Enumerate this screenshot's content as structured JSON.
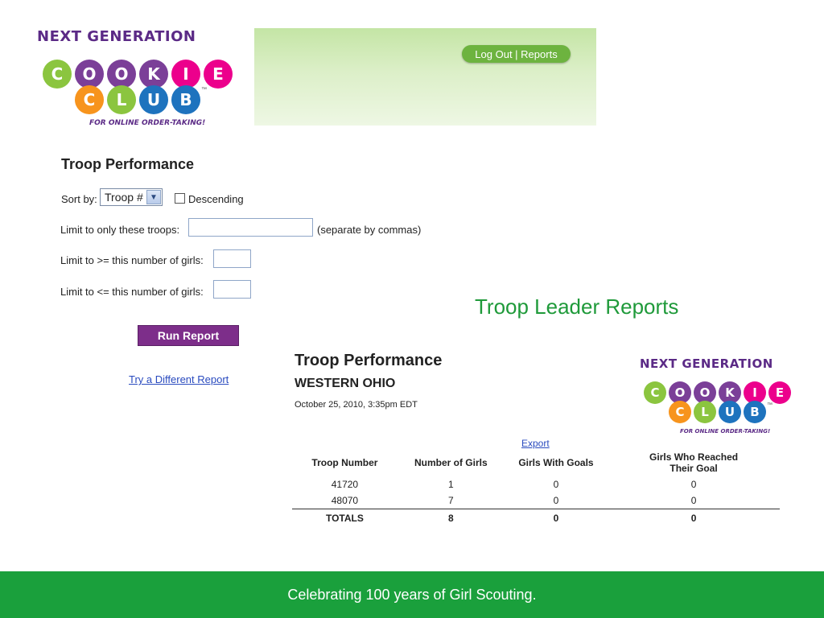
{
  "logo": {
    "title": "NEXT GENERATION",
    "word1_letters": [
      "C",
      "O",
      "O",
      "K",
      "I",
      "E"
    ],
    "word2_letters": [
      "C",
      "L",
      "U",
      "B"
    ],
    "tagline": "FOR ONLINE ORDER-TAKING!",
    "ball_colors": [
      "#8bc53f",
      "#7b3f98",
      "#7b3f98",
      "#7b3f98",
      "#ec008c",
      "#ec008c"
    ],
    "ball2_colors": [
      "#f7941d",
      "#8bc53f",
      "#1e73be",
      "#1e73be"
    ],
    "tm": "™"
  },
  "header": {
    "nav_logout": "Log Out",
    "nav_sep": " | ",
    "nav_reports": "Reports"
  },
  "form": {
    "title": "Troop Performance",
    "sort_label": "Sort by:",
    "sort_value": "Troop #",
    "descending_label": "Descending",
    "limit_troops_label": "Limit to only these troops:",
    "limit_troops_hint": "(separate by commas)",
    "min_girls_label": "Limit to >= this number of girls:",
    "max_girls_label": "Limit to <= this number of girls:",
    "run_button": "Run Report",
    "different_report_link": "Try a Different Report"
  },
  "section_title": "Troop Leader Reports",
  "report": {
    "title": "Troop Performance",
    "council": "WESTERN OHIO",
    "timestamp": "October 25, 2010, 3:35pm EDT",
    "export_link": "Export",
    "columns": [
      "Troop Number",
      "Number of Girls",
      "Girls With Goals",
      "Girls Who Reached Their Goal"
    ],
    "rows": [
      [
        "41720",
        "1",
        "0",
        "0"
      ],
      [
        "48070",
        "7",
        "0",
        "0"
      ]
    ],
    "totals": [
      "TOTALS",
      "8",
      "0",
      "0"
    ]
  },
  "footer": {
    "text": "Celebrating 100 years of Girl Scouting."
  },
  "colors": {
    "accent_green": "#1aa03c",
    "button_purple": "#7d2e8a",
    "link_blue": "#2a4bbf"
  }
}
